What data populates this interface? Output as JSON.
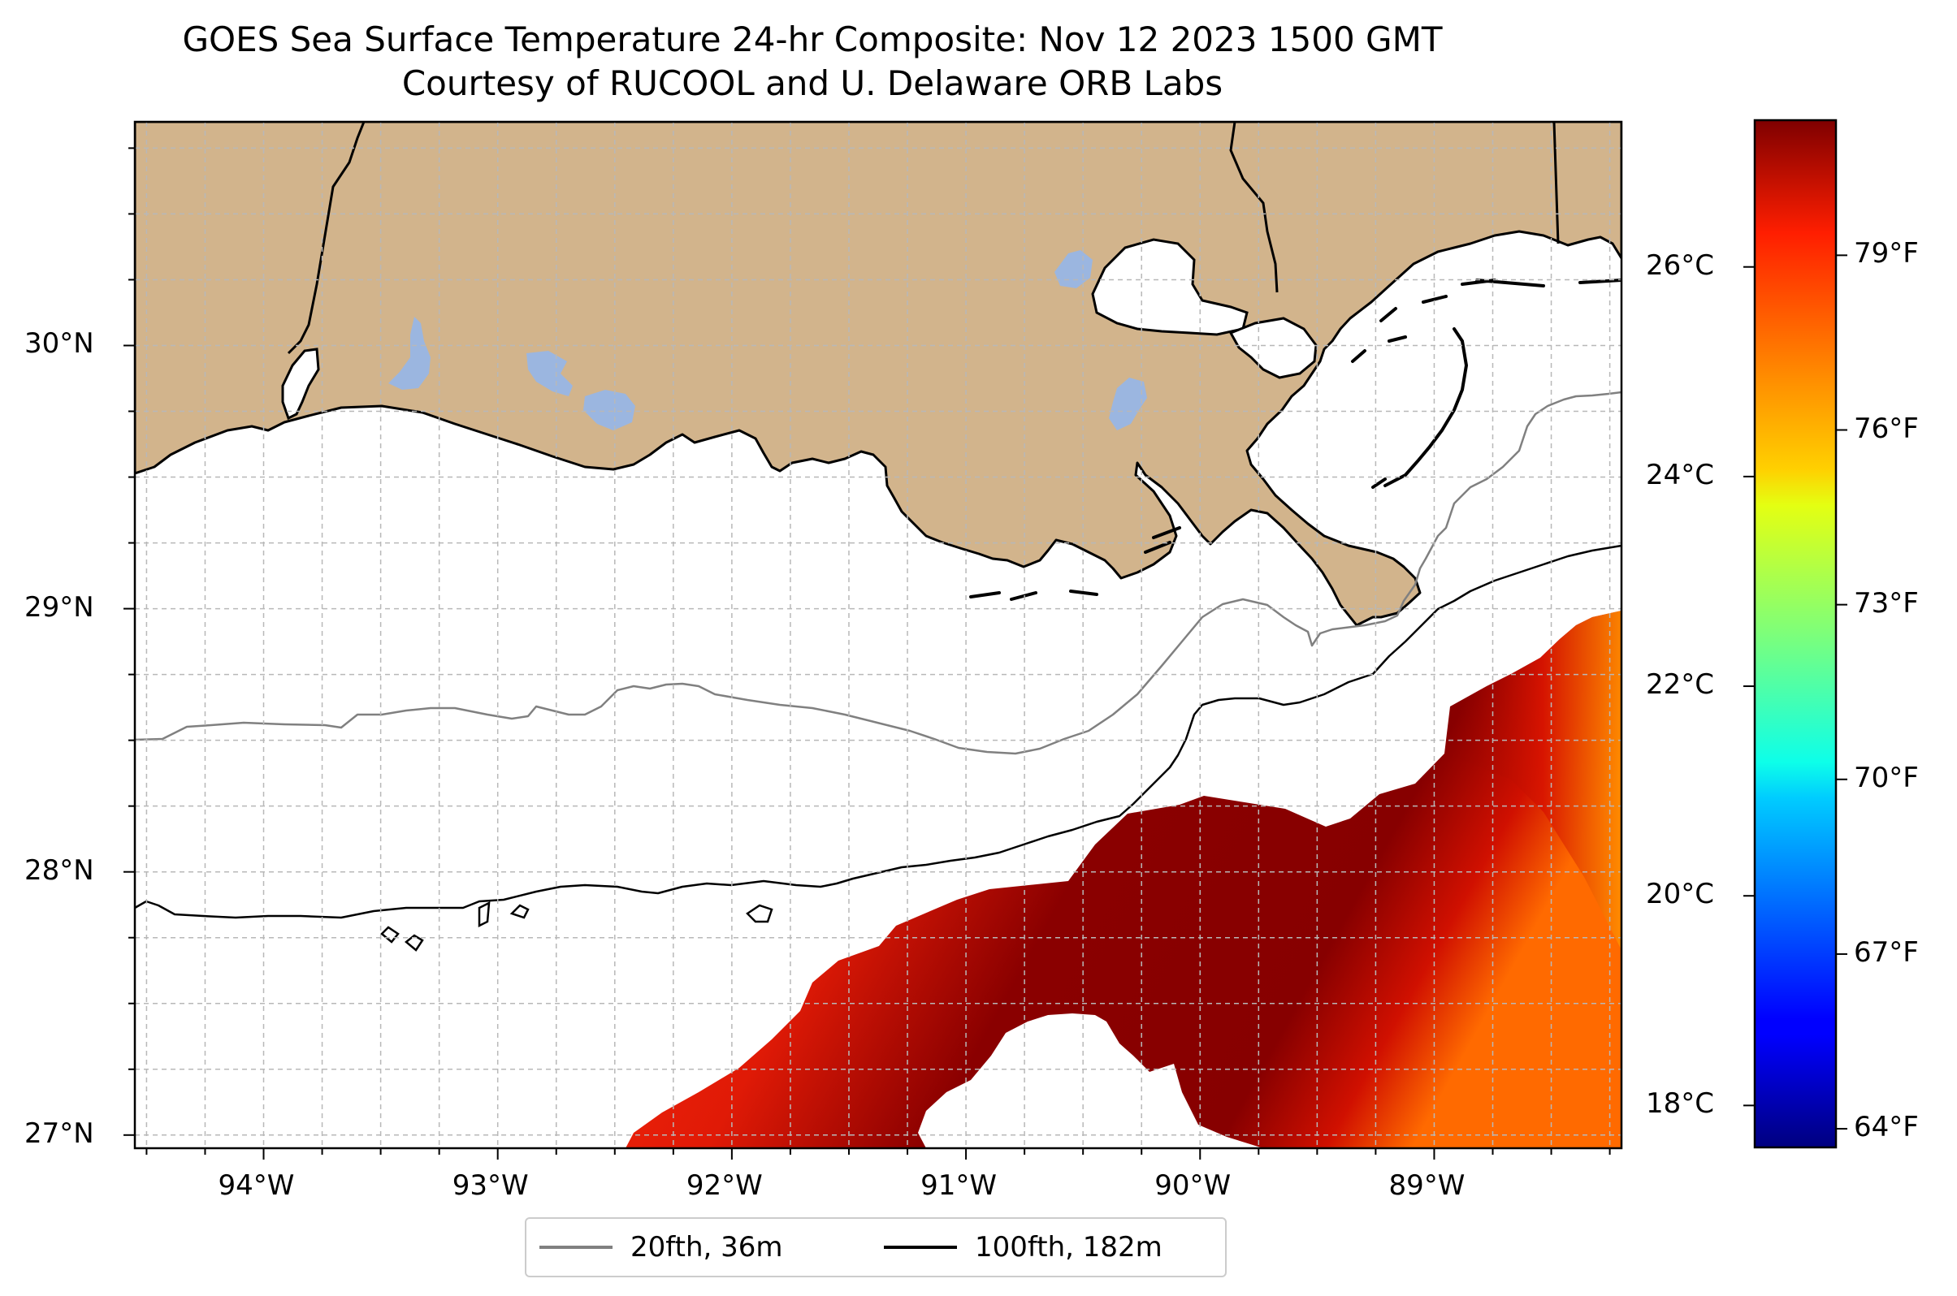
{
  "title": "GOES Sea Surface Temperature 24-hr Composite: Nov 12 2023 1500 GMT",
  "subtitle": "Courtesy of RUCOOL and U. Delaware ORB Labs",
  "map": {
    "lon_range": [
      -94.55,
      -88.2
    ],
    "lat_range": [
      26.95,
      30.85
    ],
    "lon_ticks": [
      {
        "value": -94,
        "label": "94°W"
      },
      {
        "value": -93,
        "label": "93°W"
      },
      {
        "value": -92,
        "label": "92°W"
      },
      {
        "value": -91,
        "label": "91°W"
      },
      {
        "value": -90,
        "label": "90°W"
      },
      {
        "value": -89,
        "label": "89°W"
      }
    ],
    "lat_ticks": [
      {
        "value": 27,
        "label": "27°N"
      },
      {
        "value": 28,
        "label": "28°N"
      },
      {
        "value": 29,
        "label": "29°N"
      },
      {
        "value": 30,
        "label": "30°N"
      }
    ],
    "gridlines": true,
    "colors": {
      "land": "#d2b48c",
      "water_bodies": "#9bb6e0",
      "no_data": "#ffffff",
      "contour_20fth": "#808080",
      "contour_100fth": "#000000"
    },
    "sst_coverage": "southeast portion (roughly south of 28.3°N and east of 92.4°W)"
  },
  "legend": {
    "placement": "bottom-center",
    "entries": [
      {
        "label": "20fth, 36m",
        "color": "#808080"
      },
      {
        "label": "100fth, 182m",
        "color": "#000000"
      }
    ]
  },
  "colorbar": {
    "colormap": "jet",
    "range_c": [
      17.6,
      27.4
    ],
    "celsius_ticks": [
      {
        "value": 18,
        "label": "18°C"
      },
      {
        "value": 20,
        "label": "20°C"
      },
      {
        "value": 22,
        "label": "22°C"
      },
      {
        "value": 24,
        "label": "24°C"
      },
      {
        "value": 26,
        "label": "26°C"
      }
    ],
    "fahrenheit_ticks": [
      {
        "value": 64,
        "label": "64°F"
      },
      {
        "value": 67,
        "label": "67°F"
      },
      {
        "value": 70,
        "label": "70°F"
      },
      {
        "value": 73,
        "label": "73°F"
      },
      {
        "value": 76,
        "label": "76°F"
      },
      {
        "value": 79,
        "label": "79°F"
      }
    ]
  }
}
